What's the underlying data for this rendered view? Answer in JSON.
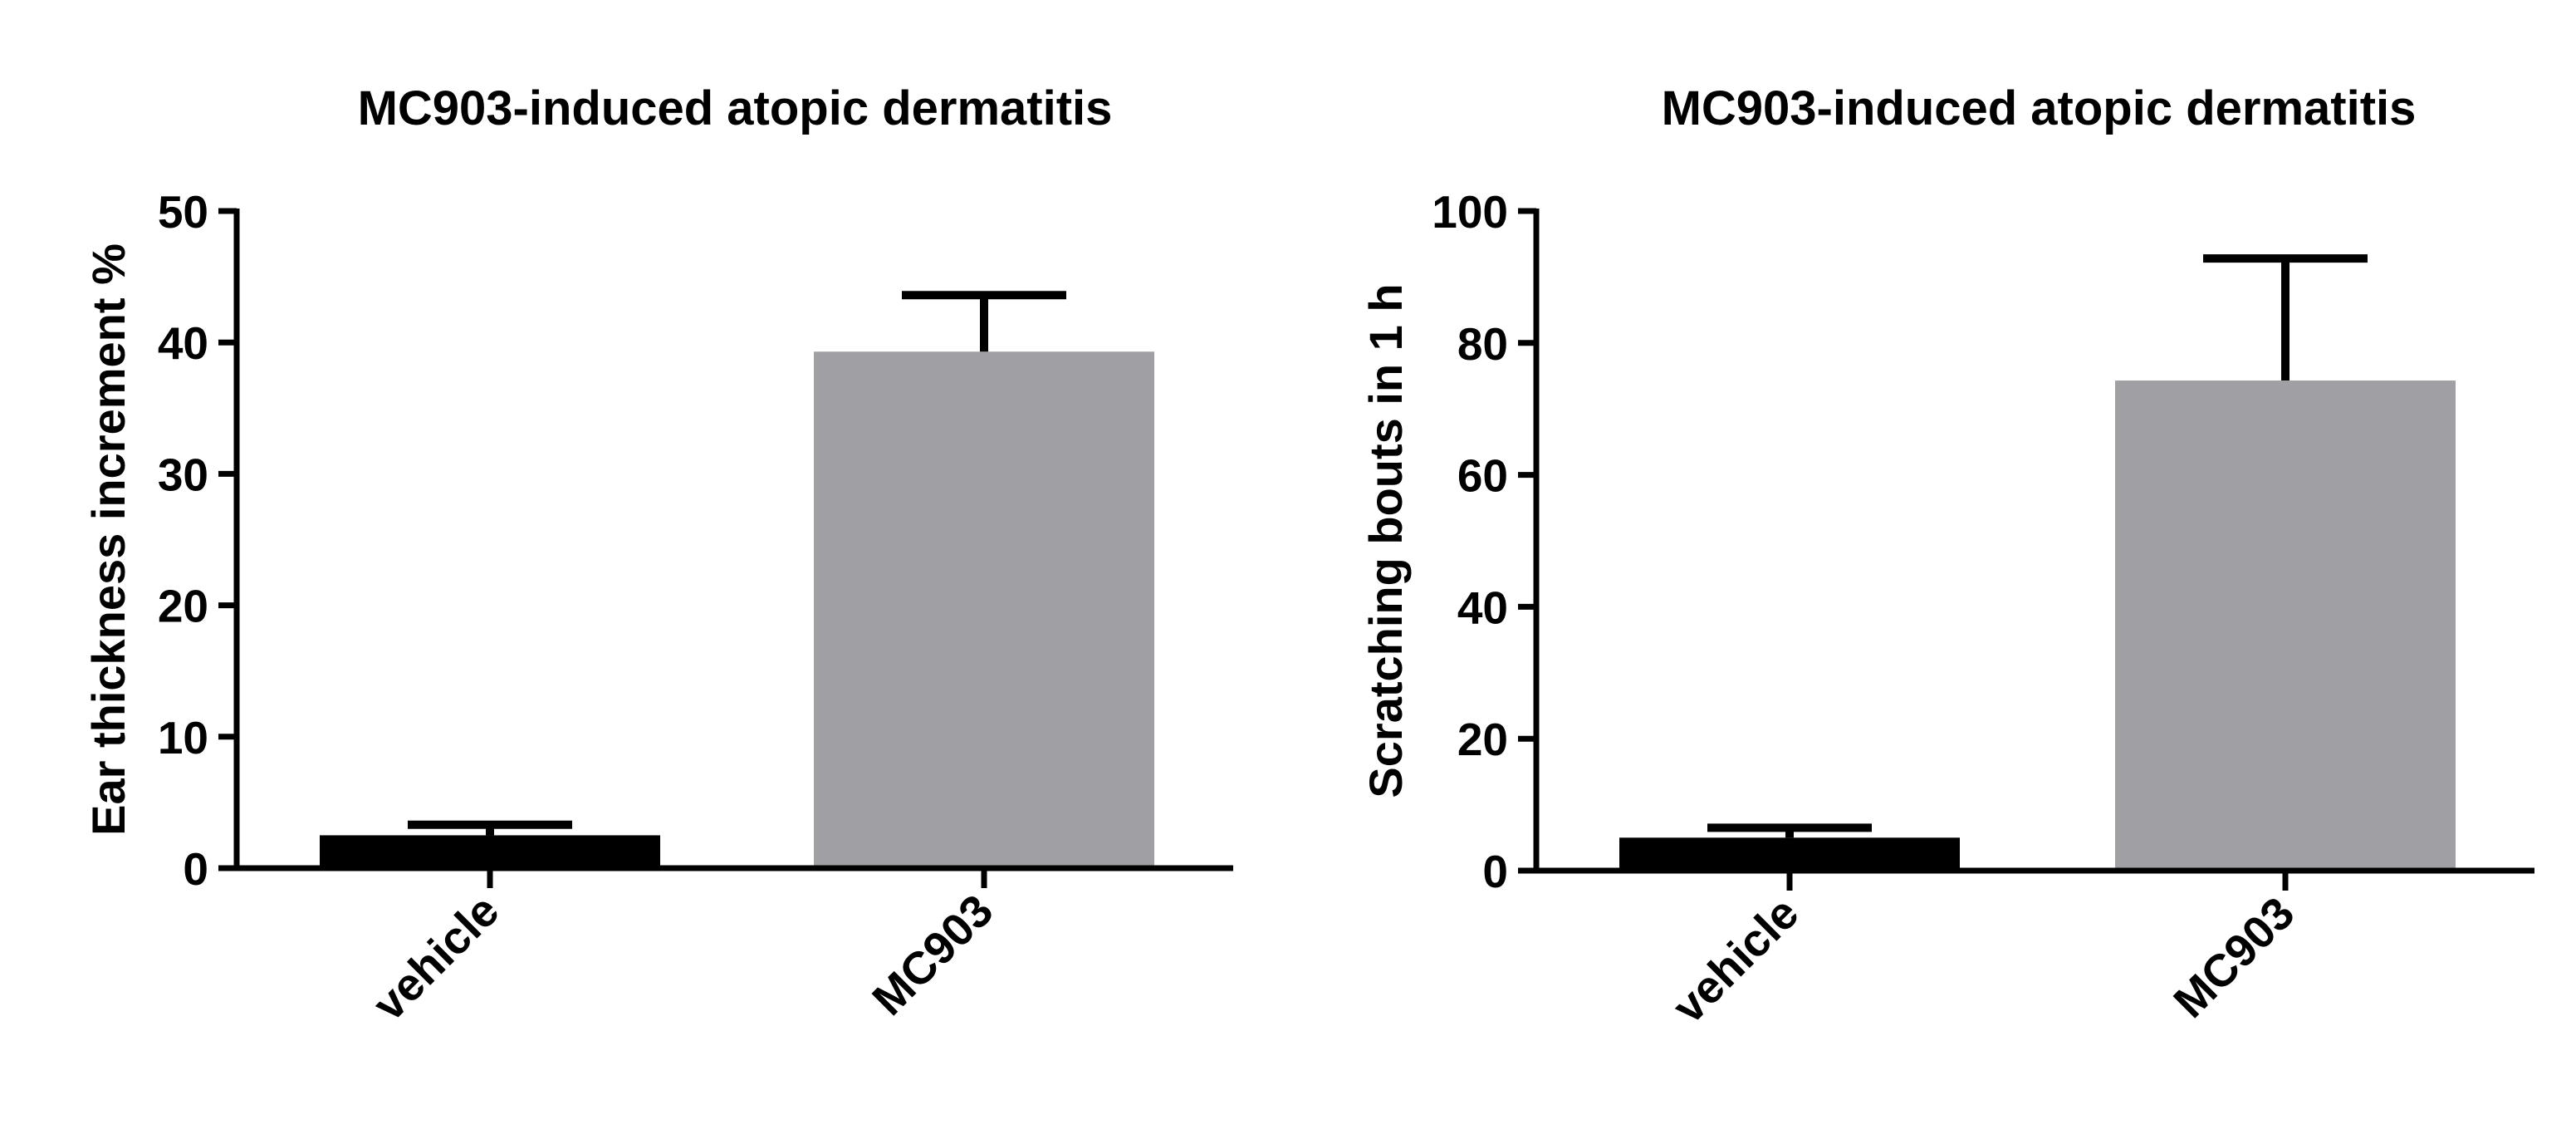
{
  "chart_data": [
    {
      "type": "bar",
      "title": "MC903-induced atopic dermatitis",
      "xlabel": "",
      "ylabel": "Ear thickness increment %",
      "categories": [
        "vehicle",
        "MC903"
      ],
      "values": [
        2.5,
        39.3
      ],
      "error_upper": [
        3.3,
        43.6
      ],
      "ylim": [
        0,
        50
      ],
      "yticks": [
        0,
        10,
        20,
        30,
        40,
        50
      ],
      "ytick_labels": [
        "0",
        "10",
        "20",
        "30",
        "40",
        "50"
      ],
      "bar_colors": [
        "#000000",
        "#a09fa4"
      ],
      "grid": false,
      "legend": "none"
    },
    {
      "type": "bar",
      "title": "MC903-induced atopic dermatitis",
      "xlabel": "",
      "ylabel": "Scratching bouts in 1 h",
      "categories": [
        "vehicle",
        "MC903"
      ],
      "values": [
        5.0,
        74.3
      ],
      "error_upper": [
        6.5,
        92.8
      ],
      "ylim": [
        0,
        100
      ],
      "yticks": [
        0,
        20,
        40,
        60,
        80,
        100
      ],
      "ytick_labels": [
        "0",
        "20",
        "40",
        "60",
        "80",
        "100"
      ],
      "bar_colors": [
        "#000000",
        "#a09fa4"
      ],
      "grid": false,
      "legend": "none"
    }
  ]
}
